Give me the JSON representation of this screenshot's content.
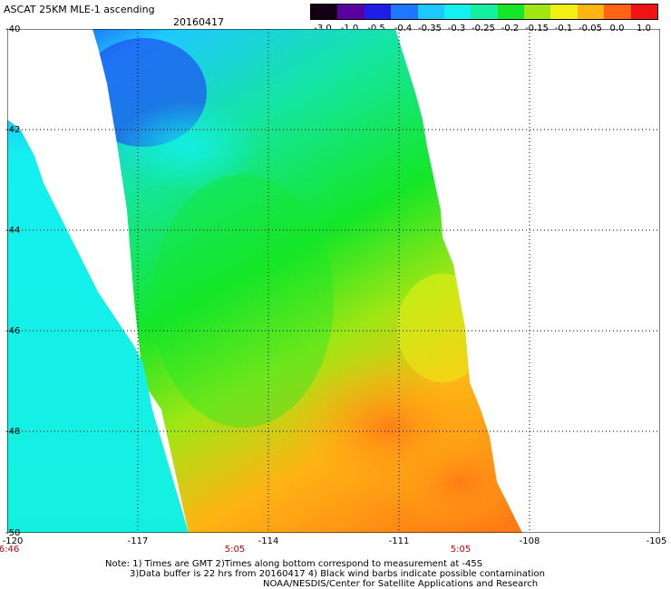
{
  "header": {
    "title": "ASCAT 25KM MLE-1 ascending",
    "date": "20160417"
  },
  "colorbar": {
    "labels": [
      "-3.0",
      "-1.0",
      "-0.5",
      "-0.4",
      "-0.35",
      "-0.3",
      "-0.25",
      "-0.2",
      "-0.15",
      "-0.1",
      "-0.05",
      "0.0",
      "1.0"
    ],
    "colors": [
      "#140014",
      "#5a00a0",
      "#1e1ee6",
      "#1e78ff",
      "#1ec8ff",
      "#14f0f0",
      "#14f0a0",
      "#14e628",
      "#a0e614",
      "#f0f014",
      "#ffb414",
      "#ff6414",
      "#f01414"
    ]
  },
  "map": {
    "lat_labels": [
      "-40",
      "-42",
      "-44",
      "-46",
      "-48",
      "-50"
    ],
    "lon_labels": [
      "-120",
      "-117",
      "-114",
      "-111",
      "-108",
      "-105"
    ],
    "time_labels": [
      "6:46",
      "5:05",
      "5:05"
    ]
  },
  "notes": {
    "line1": "Note: 1) Times are GMT 2)Times along bottom correspond to measurement at -45S",
    "line2": "3)Data buffer is 22 hrs from 20160417 4) Black wind barbs indicate possible contamination",
    "line3": "NOAA/NESDIS/Center for Satellite Applications and Research"
  }
}
